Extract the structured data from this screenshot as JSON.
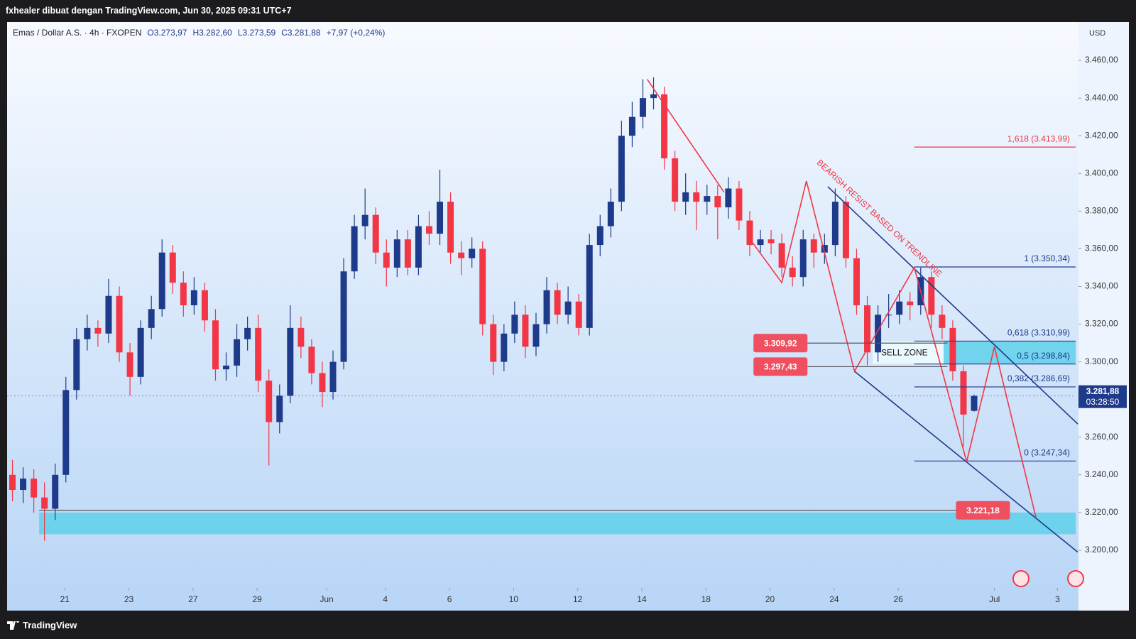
{
  "header": "fxhealer dibuat dengan TradingView.com, Jun 30, 2025 09:31 UTC+7",
  "footer": "TradingView",
  "chart_data": {
    "type": "candlestick",
    "title": "Emas / Dollar A.S. · 4h · FXOPEN",
    "ohlc_labels": [
      "O3.273,97",
      "H3.282,60",
      "L3.273,59",
      "C3.281,88"
    ],
    "change": "+7,97 (+0,24%)",
    "currency": "USD",
    "up_color": "#1e3a8a",
    "down_color": "#f23645",
    "open": [
      3240,
      3232,
      3238,
      3228,
      3222,
      3240,
      3285,
      3312,
      3318,
      3315,
      3335,
      3305,
      3292,
      3318,
      3328,
      3358,
      3342,
      3330,
      3338,
      3322,
      3296,
      3298,
      3312,
      3318,
      3290,
      3268,
      3282,
      3318,
      3308,
      3294,
      3284,
      3300,
      3348,
      3372,
      3378,
      3358,
      3350,
      3365,
      3350,
      3372,
      3368,
      3385,
      3358,
      3355,
      3360,
      3320,
      3300,
      3315,
      3325,
      3308,
      3320,
      3338,
      3325,
      3332,
      3318,
      3362,
      3372,
      3385,
      3420,
      3430,
      3440,
      3442,
      3408,
      3385,
      3390,
      3385,
      3388,
      3382,
      3392,
      3375,
      3362,
      3365,
      3363,
      3350,
      3345,
      3365,
      3358,
      3362,
      3385,
      3355,
      3330,
      3305,
      3325,
      3325,
      3332,
      3330,
      3345,
      3325,
      3318,
      3295,
      3273.97
    ],
    "high": [
      3248,
      3244,
      3243,
      3236,
      3246,
      3292,
      3318,
      3325,
      3322,
      3344,
      3340,
      3310,
      3322,
      3335,
      3365,
      3362,
      3348,
      3345,
      3342,
      3328,
      3305,
      3320,
      3324,
      3325,
      3296,
      3288,
      3330,
      3324,
      3312,
      3300,
      3306,
      3355,
      3378,
      3392,
      3382,
      3365,
      3370,
      3370,
      3378,
      3380,
      3402,
      3390,
      3364,
      3366,
      3364,
      3325,
      3320,
      3332,
      3330,
      3326,
      3345,
      3342,
      3340,
      3336,
      3368,
      3378,
      3392,
      3428,
      3438,
      3450,
      3451,
      3446,
      3412,
      3400,
      3396,
      3394,
      3394,
      3398,
      3396,
      3380,
      3370,
      3370,
      3368,
      3356,
      3370,
      3368,
      3368,
      3392,
      3388,
      3360,
      3335,
      3330,
      3336,
      3338,
      3337,
      3350,
      3348,
      3330,
      3322,
      3298,
      3282.6
    ],
    "low": [
      3226,
      3225,
      3220,
      3205,
      3216,
      3236,
      3280,
      3306,
      3308,
      3310,
      3300,
      3282,
      3288,
      3312,
      3324,
      3336,
      3324,
      3325,
      3316,
      3290,
      3290,
      3292,
      3306,
      3284,
      3245,
      3262,
      3278,
      3302,
      3288,
      3276,
      3280,
      3296,
      3344,
      3365,
      3352,
      3340,
      3345,
      3346,
      3346,
      3362,
      3362,
      3352,
      3346,
      3350,
      3314,
      3293,
      3295,
      3310,
      3302,
      3303,
      3315,
      3320,
      3320,
      3314,
      3314,
      3356,
      3366,
      3380,
      3414,
      3424,
      3434,
      3402,
      3380,
      3378,
      3370,
      3378,
      3365,
      3376,
      3370,
      3356,
      3358,
      3357,
      3345,
      3340,
      3340,
      3350,
      3352,
      3356,
      3350,
      3325,
      3298,
      3300,
      3318,
      3320,
      3322,
      3325,
      3318,
      3312,
      3290,
      3255,
      3273.59
    ],
    "close": [
      3232,
      3238,
      3228,
      3222,
      3240,
      3285,
      3312,
      3318,
      3315,
      3335,
      3305,
      3292,
      3318,
      3328,
      3358,
      3342,
      3330,
      3338,
      3322,
      3296,
      3298,
      3312,
      3318,
      3290,
      3268,
      3282,
      3318,
      3308,
      3294,
      3284,
      3300,
      3348,
      3372,
      3378,
      3358,
      3350,
      3365,
      3350,
      3372,
      3368,
      3385,
      3358,
      3355,
      3360,
      3320,
      3300,
      3315,
      3325,
      3308,
      3320,
      3338,
      3325,
      3332,
      3318,
      3362,
      3372,
      3385,
      3420,
      3430,
      3440,
      3442,
      3408,
      3385,
      3390,
      3385,
      3388,
      3382,
      3392,
      3375,
      3362,
      3365,
      3363,
      3350,
      3345,
      3365,
      3358,
      3362,
      3385,
      3355,
      3330,
      3305,
      3325,
      3325,
      3332,
      3330,
      3345,
      3325,
      3318,
      3295,
      3272,
      3281.88
    ],
    "xlim": [
      0,
      100
    ],
    "xticks": [
      {
        "value": 5.4,
        "label": "21"
      },
      {
        "value": 11.4,
        "label": "23"
      },
      {
        "value": 17.4,
        "label": "27"
      },
      {
        "value": 23.4,
        "label": "29"
      },
      {
        "value": 29.9,
        "label": "Jun"
      },
      {
        "value": 35.4,
        "label": "4"
      },
      {
        "value": 41.4,
        "label": "6"
      },
      {
        "value": 47.4,
        "label": "10"
      },
      {
        "value": 53.4,
        "label": "12"
      },
      {
        "value": 59.4,
        "label": "14"
      },
      {
        "value": 65.4,
        "label": "18"
      },
      {
        "value": 71.4,
        "label": "20"
      },
      {
        "value": 77.4,
        "label": "24"
      },
      {
        "value": 83.4,
        "label": "26"
      },
      {
        "value": 92.4,
        "label": "Jul"
      },
      {
        "value": 98.3,
        "label": "3"
      }
    ],
    "ylim": [
      3180,
      3480
    ],
    "yticks": [
      {
        "value": 3200,
        "label": "3.200,00"
      },
      {
        "value": 3220,
        "label": "3.220,00"
      },
      {
        "value": 3240,
        "label": "3.240,00"
      },
      {
        "value": 3260,
        "label": "3.260,00"
      },
      {
        "value": 3280,
        "label": "3.280,00"
      },
      {
        "value": 3300,
        "label": "3.300,00"
      },
      {
        "value": 3320,
        "label": "3.320,00"
      },
      {
        "value": 3340,
        "label": "3.340,00"
      },
      {
        "value": 3360,
        "label": "3.360,00"
      },
      {
        "value": 3380,
        "label": "3.380,00"
      },
      {
        "value": 3400,
        "label": "3.400,00"
      },
      {
        "value": 3420,
        "label": "3.420,00"
      },
      {
        "value": 3440,
        "label": "3.440,00"
      },
      {
        "value": 3460,
        "label": "3.460,00"
      }
    ],
    "last_price": {
      "value": 3281.88,
      "label": "3.281,88"
    },
    "countdown": "03:28:50",
    "zones": [
      {
        "range": [
          3208.5,
          3220
        ],
        "x": [
          3,
          100
        ],
        "color": "#5fd0ea"
      },
      {
        "range": [
          3298.84,
          3310.99
        ],
        "x": [
          81,
          100
        ],
        "color": "#5fd0ea",
        "label": "SELL ZONE"
      }
    ],
    "price_markers": [
      {
        "value": 3309.92,
        "label": "3.309,92",
        "x": [
          74.9,
          88
        ],
        "side": "left"
      },
      {
        "value": 3297.43,
        "label": "3.297,43",
        "x": [
          74.9,
          88
        ],
        "side": "left"
      },
      {
        "value": 3221.18,
        "label": "3.221,18",
        "x": [
          3,
          88.8
        ],
        "side": "right"
      }
    ],
    "fib_levels": [
      {
        "value": 3413.99,
        "label": "1,618 (3.413,99)",
        "color": "#f23645"
      },
      {
        "value": 3350.34,
        "label": "1 (3.350,34)",
        "color": "#1e3a8a"
      },
      {
        "value": 3310.99,
        "label": "0,618 (3.310,99)",
        "color": "#1e3a8a"
      },
      {
        "value": 3298.84,
        "label": "0,5 (3.298,84)",
        "color": "#1e3a8a"
      },
      {
        "value": 3286.69,
        "label": "0,382 (3.286,69)",
        "color": "#1e3a8a"
      },
      {
        "value": 3247.34,
        "label": "0 (3.247,34)",
        "color": "#1e3a8a"
      }
    ],
    "fib_x": [
      84.9,
      100
    ],
    "drawings": [
      {
        "color": "#f23645",
        "points": [
          [
            59.9,
            3450
          ],
          [
            67.1,
            3390
          ]
        ]
      },
      {
        "color": "#1e3a8a",
        "points": [
          [
            76.8,
            3393
          ],
          [
            100.2,
            3267
          ]
        ]
      },
      {
        "color": "#1e3a8a",
        "points": [
          [
            79.3,
            3295
          ],
          [
            100.2,
            3199
          ]
        ]
      },
      {
        "color": "#f23645",
        "points": [
          [
            69.8,
            3363
          ],
          [
            72.5,
            3342
          ],
          [
            74.8,
            3396
          ],
          [
            79.3,
            3295
          ],
          [
            84.9,
            3350
          ],
          [
            89.8,
            3247
          ],
          [
            92.4,
            3308
          ],
          [
            96.3,
            3217
          ]
        ]
      }
    ],
    "note": {
      "text": "BEARISH RESIST BASED ON TRENDLINE",
      "at": [
        81.6,
        3376
      ],
      "color": "#f23645"
    }
  }
}
